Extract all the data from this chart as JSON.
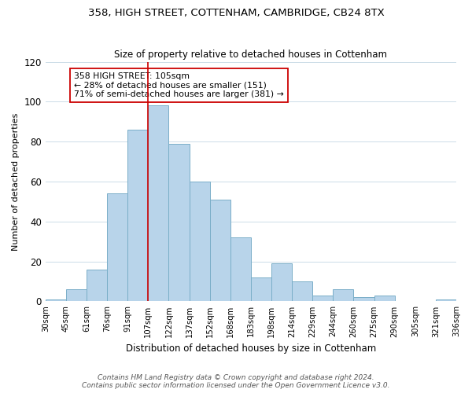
{
  "title1": "358, HIGH STREET, COTTENHAM, CAMBRIDGE, CB24 8TX",
  "title2": "Size of property relative to detached houses in Cottenham",
  "xlabel": "Distribution of detached houses by size in Cottenham",
  "ylabel": "Number of detached properties",
  "bar_color": "#b8d4ea",
  "bar_edgecolor": "#7aaec8",
  "bin_labels": [
    "30sqm",
    "45sqm",
    "61sqm",
    "76sqm",
    "91sqm",
    "107sqm",
    "122sqm",
    "137sqm",
    "152sqm",
    "168sqm",
    "183sqm",
    "198sqm",
    "214sqm",
    "229sqm",
    "244sqm",
    "260sqm",
    "275sqm",
    "290sqm",
    "305sqm",
    "321sqm",
    "336sqm"
  ],
  "bar_heights": [
    1,
    6,
    16,
    54,
    86,
    98,
    79,
    60,
    51,
    32,
    12,
    19,
    10,
    3,
    6,
    2,
    3,
    0,
    0,
    1
  ],
  "vline_x": 5,
  "vline_color": "#cc0000",
  "annotation_text": "358 HIGH STREET: 105sqm\n← 28% of detached houses are smaller (151)\n71% of semi-detached houses are larger (381) →",
  "annotation_box_edgecolor": "#cc0000",
  "ylim": [
    0,
    120
  ],
  "yticks": [
    0,
    20,
    40,
    60,
    80,
    100,
    120
  ],
  "footer1": "Contains HM Land Registry data © Crown copyright and database right 2024.",
  "footer2": "Contains public sector information licensed under the Open Government Licence v3.0."
}
